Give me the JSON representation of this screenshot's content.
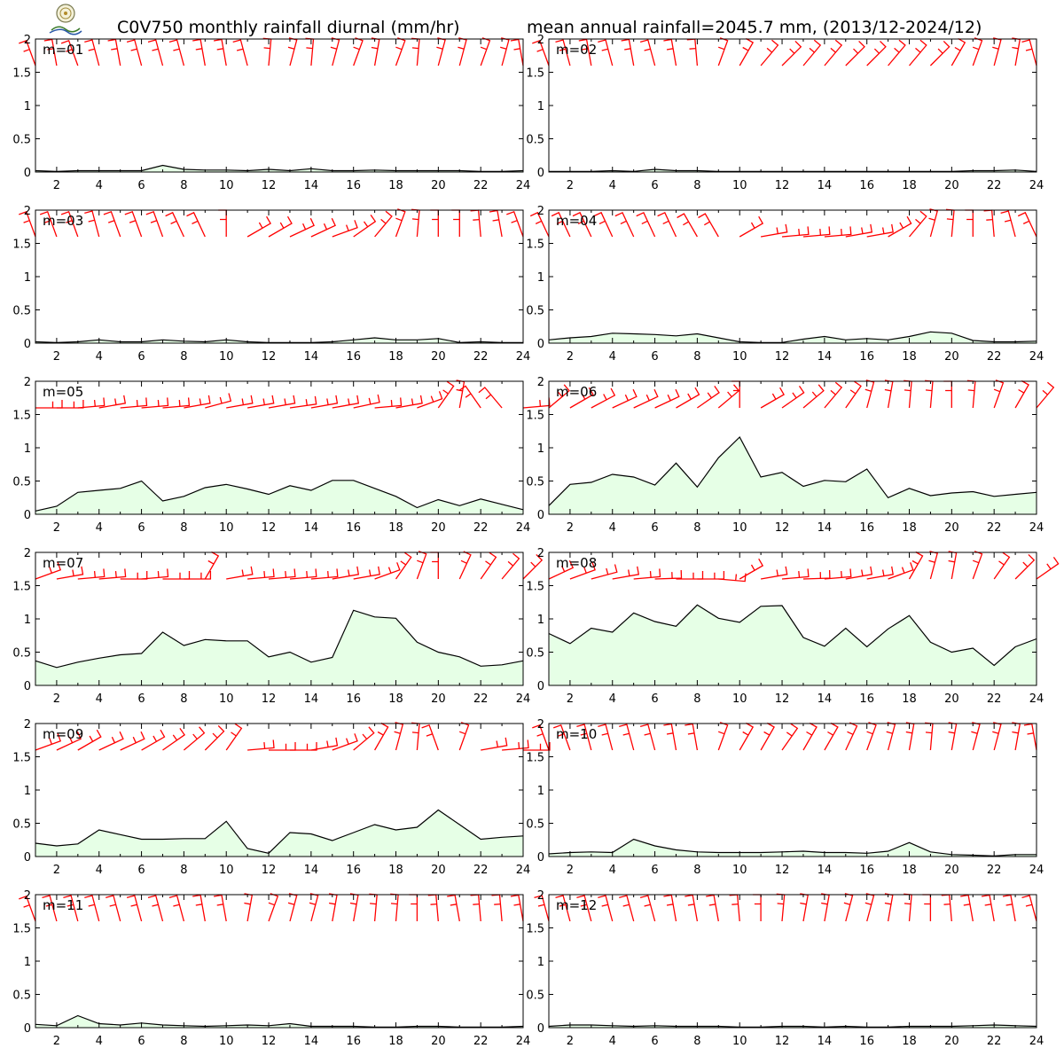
{
  "header": {
    "title_left": "C0V750 monthly rainfall diurnal (mm/hr)",
    "title_right": "mean annual rainfall=2045.7 mm, (2013/12-2024/12)"
  },
  "colors": {
    "area_fill": "#e6ffe6",
    "line": "#000000",
    "barb": "#ff0000"
  },
  "chart_data": {
    "type": "area",
    "x": [
      1,
      2,
      3,
      4,
      5,
      6,
      7,
      8,
      9,
      10,
      11,
      12,
      13,
      14,
      15,
      16,
      17,
      18,
      19,
      20,
      21,
      22,
      23,
      24
    ],
    "xticks": [
      2,
      4,
      6,
      8,
      10,
      12,
      14,
      16,
      18,
      20,
      22,
      24
    ],
    "xlim": [
      1,
      24
    ],
    "ylim": [
      0,
      2
    ],
    "yticks": [
      0,
      0.5,
      1,
      1.5,
      2
    ],
    "ytick_labels": [
      "0",
      "0.5",
      "1",
      "1.5",
      "2"
    ],
    "grid": false,
    "panels": [
      {
        "label": "m=01",
        "values": [
          0.02,
          0.01,
          0.02,
          0.02,
          0.02,
          0.02,
          0.1,
          0.04,
          0.03,
          0.03,
          0.02,
          0.04,
          0.02,
          0.05,
          0.02,
          0.02,
          0.03,
          0.02,
          0.02,
          0.02,
          0.02,
          0.01,
          0.01,
          0.02
        ],
        "wind_dir": [
          200,
          190,
          200,
          195,
          190,
          195,
          195,
          195,
          190,
          190,
          195,
          175,
          165,
          175,
          165,
          160,
          170,
          160,
          175,
          165,
          165,
          160,
          165,
          190
        ]
      },
      {
        "label": "m=02",
        "values": [
          0.01,
          0.01,
          0.01,
          0.02,
          0.01,
          0.04,
          0.02,
          0.02,
          0.01,
          0.01,
          0.01,
          0.01,
          0.01,
          0.01,
          0.01,
          0.01,
          0.01,
          0.01,
          0.01,
          0.01,
          0.02,
          0.02,
          0.03,
          0.01
        ],
        "wind_dir": [
          200,
          195,
          190,
          195,
          190,
          195,
          190,
          185,
          160,
          150,
          140,
          135,
          140,
          140,
          135,
          135,
          140,
          140,
          135,
          150,
          160,
          165,
          170,
          195
        ]
      },
      {
        "label": "m=03",
        "values": [
          0.02,
          0.01,
          0.02,
          0.05,
          0.02,
          0.02,
          0.05,
          0.03,
          0.02,
          0.05,
          0.02,
          0.01,
          0.01,
          0.01,
          0.02,
          0.05,
          0.08,
          0.05,
          0.05,
          0.07,
          0.01,
          0.02,
          0.01,
          0.01
        ],
        "wind_dir": [
          200,
          200,
          200,
          195,
          200,
          200,
          200,
          205,
          205,
          180,
          120,
          120,
          115,
          115,
          110,
          125,
          140,
          160,
          175,
          180,
          180,
          185,
          190,
          200
        ]
      },
      {
        "label": "m=04",
        "values": [
          0.05,
          0.08,
          0.1,
          0.15,
          0.14,
          0.13,
          0.11,
          0.14,
          0.08,
          0.02,
          0.01,
          0.01,
          0.06,
          0.1,
          0.05,
          0.07,
          0.05,
          0.1,
          0.17,
          0.15,
          0.04,
          0.02,
          0.02,
          0.03
        ],
        "wind_dir": [
          205,
          205,
          205,
          205,
          205,
          205,
          205,
          210,
          210,
          120,
          100,
          95,
          95,
          95,
          100,
          100,
          120,
          140,
          165,
          175,
          180,
          185,
          195,
          205
        ]
      },
      {
        "label": "m=05",
        "values": [
          0.05,
          0.12,
          0.33,
          0.36,
          0.39,
          0.5,
          0.2,
          0.27,
          0.4,
          0.45,
          0.38,
          0.3,
          0.43,
          0.36,
          0.51,
          0.51,
          0.39,
          0.27,
          0.1,
          0.22,
          0.13,
          0.23,
          0.15,
          0.07
        ],
        "wind_dir": [
          90,
          90,
          95,
          100,
          95,
          95,
          95,
          100,
          105,
          100,
          100,
          100,
          98,
          100,
          100,
          102,
          95,
          100,
          110,
          145,
          170,
          215,
          220,
          95
        ]
      },
      {
        "label": "m=06",
        "values": [
          0.13,
          0.45,
          0.48,
          0.6,
          0.56,
          0.44,
          0.77,
          0.41,
          0.85,
          1.16,
          0.56,
          0.63,
          0.42,
          0.51,
          0.49,
          0.68,
          0.25,
          0.39,
          0.28,
          0.32,
          0.34,
          0.27,
          0.3,
          0.33
        ],
        "wind_dir": [
          130,
          120,
          118,
          115,
          115,
          115,
          120,
          125,
          130,
          180,
          120,
          125,
          130,
          140,
          145,
          165,
          170,
          175,
          175,
          180,
          175,
          160,
          150,
          140
        ]
      },
      {
        "label": "m=07",
        "values": [
          0.37,
          0.27,
          0.35,
          0.41,
          0.46,
          0.48,
          0.8,
          0.6,
          0.69,
          0.67,
          0.67,
          0.43,
          0.5,
          0.35,
          0.42,
          1.13,
          1.03,
          1.01,
          0.65,
          0.5,
          0.43,
          0.29,
          0.31,
          0.37
        ],
        "wind_dir": [
          110,
          100,
          95,
          95,
          90,
          95,
          90,
          90,
          150,
          100,
          95,
          95,
          95,
          95,
          100,
          100,
          110,
          145,
          160,
          180,
          155,
          145,
          140,
          135
        ]
      },
      {
        "label": "m=08",
        "values": [
          0.78,
          0.63,
          0.86,
          0.8,
          1.09,
          0.96,
          0.89,
          1.21,
          1.01,
          0.95,
          1.19,
          1.2,
          0.72,
          0.59,
          0.86,
          0.58,
          0.85,
          1.05,
          0.65,
          0.5,
          0.56,
          0.3,
          0.58,
          0.7
        ],
        "wind_dir": [
          115,
          110,
          105,
          100,
          95,
          92,
          90,
          90,
          85,
          120,
          100,
          95,
          92,
          95,
          100,
          100,
          110,
          150,
          165,
          170,
          160,
          145,
          135,
          125
        ]
      },
      {
        "label": "m=09",
        "values": [
          0.2,
          0.16,
          0.19,
          0.4,
          0.33,
          0.26,
          0.26,
          0.27,
          0.27,
          0.53,
          0.12,
          0.05,
          0.36,
          0.34,
          0.24,
          0.36,
          0.48,
          0.4,
          0.44,
          0.7,
          0.48,
          0.26,
          0.29,
          0.31
        ],
        "wind_dir": [
          110,
          115,
          120,
          115,
          115,
          120,
          125,
          130,
          135,
          145,
          95,
          90,
          90,
          100,
          110,
          130,
          150,
          165,
          175,
          200,
          160,
          100,
          95,
          90
        ]
      },
      {
        "label": "m=10",
        "values": [
          0.04,
          0.06,
          0.07,
          0.06,
          0.26,
          0.16,
          0.1,
          0.07,
          0.06,
          0.06,
          0.06,
          0.07,
          0.08,
          0.06,
          0.06,
          0.05,
          0.08,
          0.21,
          0.07,
          0.03,
          0.02,
          0.01,
          0.03,
          0.03
        ],
        "wind_dir": [
          200,
          200,
          195,
          195,
          195,
          195,
          190,
          190,
          160,
          150,
          150,
          145,
          150,
          150,
          155,
          160,
          165,
          170,
          175,
          170,
          165,
          165,
          170,
          190
        ]
      },
      {
        "label": "m=11",
        "values": [
          0.05,
          0.03,
          0.18,
          0.06,
          0.04,
          0.07,
          0.04,
          0.03,
          0.02,
          0.03,
          0.04,
          0.03,
          0.06,
          0.02,
          0.02,
          0.02,
          0.01,
          0.01,
          0.02,
          0.02,
          0.01,
          0.01,
          0.01,
          0.02
        ],
        "wind_dir": [
          200,
          195,
          195,
          195,
          195,
          195,
          195,
          195,
          190,
          190,
          170,
          160,
          165,
          165,
          170,
          170,
          175,
          175,
          180,
          185,
          190,
          185,
          185,
          190
        ]
      },
      {
        "label": "m=12",
        "values": [
          0.02,
          0.04,
          0.04,
          0.03,
          0.02,
          0.03,
          0.02,
          0.02,
          0.02,
          0.01,
          0.01,
          0.02,
          0.02,
          0.01,
          0.02,
          0.01,
          0.01,
          0.02,
          0.02,
          0.02,
          0.03,
          0.04,
          0.03,
          0.02
        ],
        "wind_dir": [
          195,
          195,
          195,
          195,
          195,
          195,
          190,
          190,
          190,
          185,
          180,
          175,
          170,
          170,
          165,
          165,
          170,
          175,
          180,
          185,
          190,
          190,
          190,
          195
        ]
      }
    ]
  }
}
